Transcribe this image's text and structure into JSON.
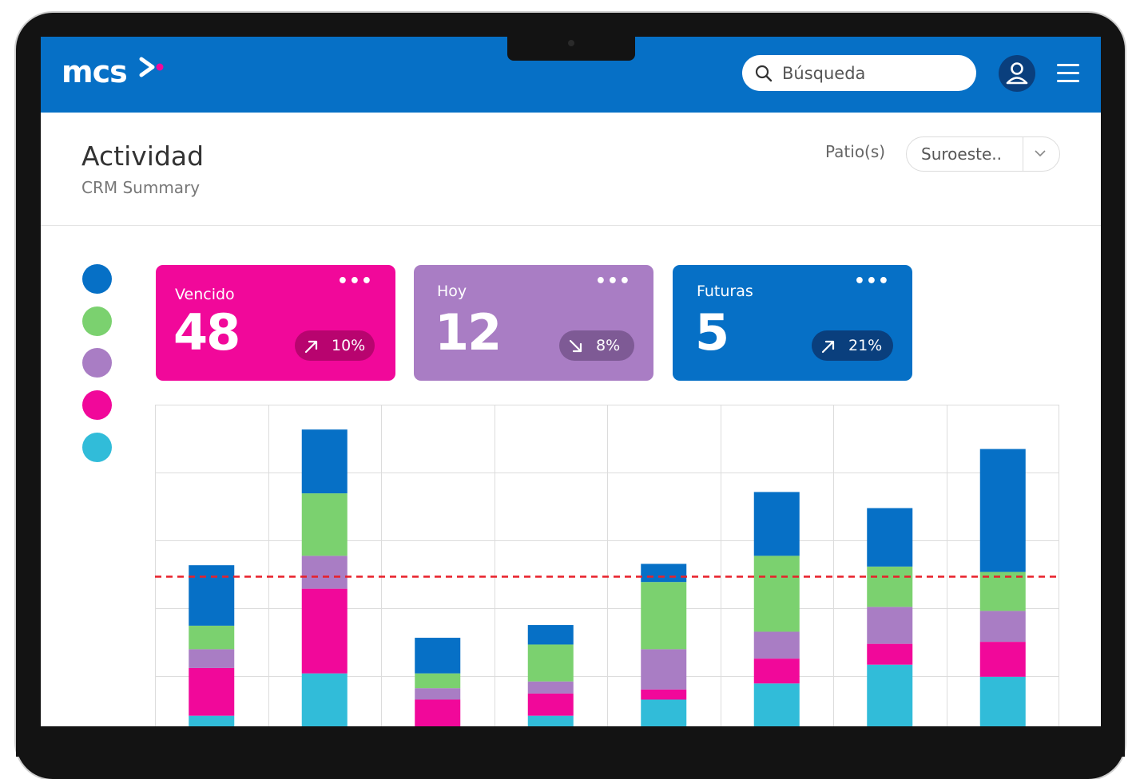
{
  "app": {
    "logo_text": "mcs"
  },
  "search": {
    "placeholder": "Búsqueda"
  },
  "header": {
    "title": "Actividad",
    "subtitle": "CRM Summary"
  },
  "filter": {
    "label": "Patio(s)",
    "selected": "Suroeste.."
  },
  "colors": {
    "blue": "#0670c6",
    "green": "#7bd16f",
    "purple": "#a97dc4",
    "pink": "#f1089a",
    "cyan": "#31bcd9"
  },
  "cards": [
    {
      "label": "Vencido",
      "value": "48",
      "trend": "up",
      "change": "10%",
      "color": "#f1089a"
    },
    {
      "label": "Hoy",
      "value": "12",
      "trend": "down",
      "change": "8%",
      "color": "#a97dc4"
    },
    {
      "label": "Futuras",
      "value": "5",
      "trend": "up",
      "change": "21%",
      "color": "#0670c6"
    }
  ],
  "chart_data": {
    "type": "bar",
    "stacked": true,
    "grid": true,
    "ylim": [
      0,
      4.8
    ],
    "reference_line": 2.24,
    "categories": [
      "",
      "",
      "",
      "",
      "",
      "",
      "",
      ""
    ],
    "series": [
      {
        "color": "#31bcd9",
        "values": [
          0.17,
          0.8,
          0,
          0.17,
          0.41,
          0.65,
          0.93,
          0.75
        ]
      },
      {
        "color": "#f1089a",
        "values": [
          0.71,
          1.26,
          0.41,
          0.33,
          0.15,
          0.37,
          0.31,
          0.52
        ]
      },
      {
        "color": "#a97dc4",
        "values": [
          0.28,
          0.49,
          0.17,
          0.18,
          0.6,
          0.4,
          0.55,
          0.46
        ]
      },
      {
        "color": "#7bd16f",
        "values": [
          0.35,
          0.93,
          0.22,
          0.55,
          1,
          1.13,
          0.6,
          0.58
        ]
      },
      {
        "color": "#0670c6",
        "values": [
          0.9,
          0.95,
          0.53,
          0.29,
          0.27,
          0.95,
          0.87,
          1.83
        ]
      }
    ]
  }
}
